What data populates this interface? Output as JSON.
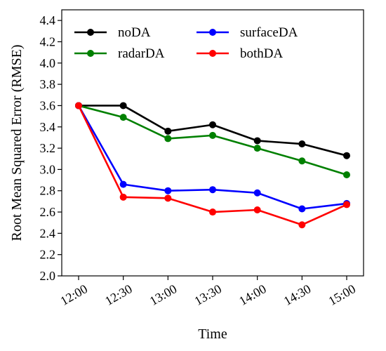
{
  "chart_data": {
    "type": "line",
    "categories": [
      "12:00",
      "12:30",
      "13:00",
      "13:30",
      "14:00",
      "14:30",
      "15:00"
    ],
    "xlabel": "Time",
    "ylabel": "Root Mean Squared Error (RMSE)",
    "ylim": [
      2.0,
      4.5
    ],
    "yticks": [
      "2.0",
      "2.2",
      "2.4",
      "2.6",
      "2.8",
      "3.0",
      "3.2",
      "3.4",
      "3.6",
      "3.8",
      "4.0",
      "4.2",
      "4.4"
    ],
    "grid": false,
    "legend_position": "top",
    "series": [
      {
        "name": "noDA",
        "color": "#000000",
        "values": [
          3.6,
          3.6,
          3.36,
          3.42,
          3.27,
          3.24,
          3.13
        ]
      },
      {
        "name": "surfaceDA",
        "color": "#0000ff",
        "values": [
          3.6,
          2.86,
          2.8,
          2.81,
          2.78,
          2.63,
          2.68
        ]
      },
      {
        "name": "radarDA",
        "color": "#008000",
        "values": [
          3.6,
          3.49,
          3.29,
          3.32,
          3.2,
          3.08,
          2.95
        ]
      },
      {
        "name": "bothDA",
        "color": "#ff0000",
        "values": [
          3.6,
          2.74,
          2.73,
          2.6,
          2.62,
          2.48,
          2.67
        ]
      }
    ]
  }
}
